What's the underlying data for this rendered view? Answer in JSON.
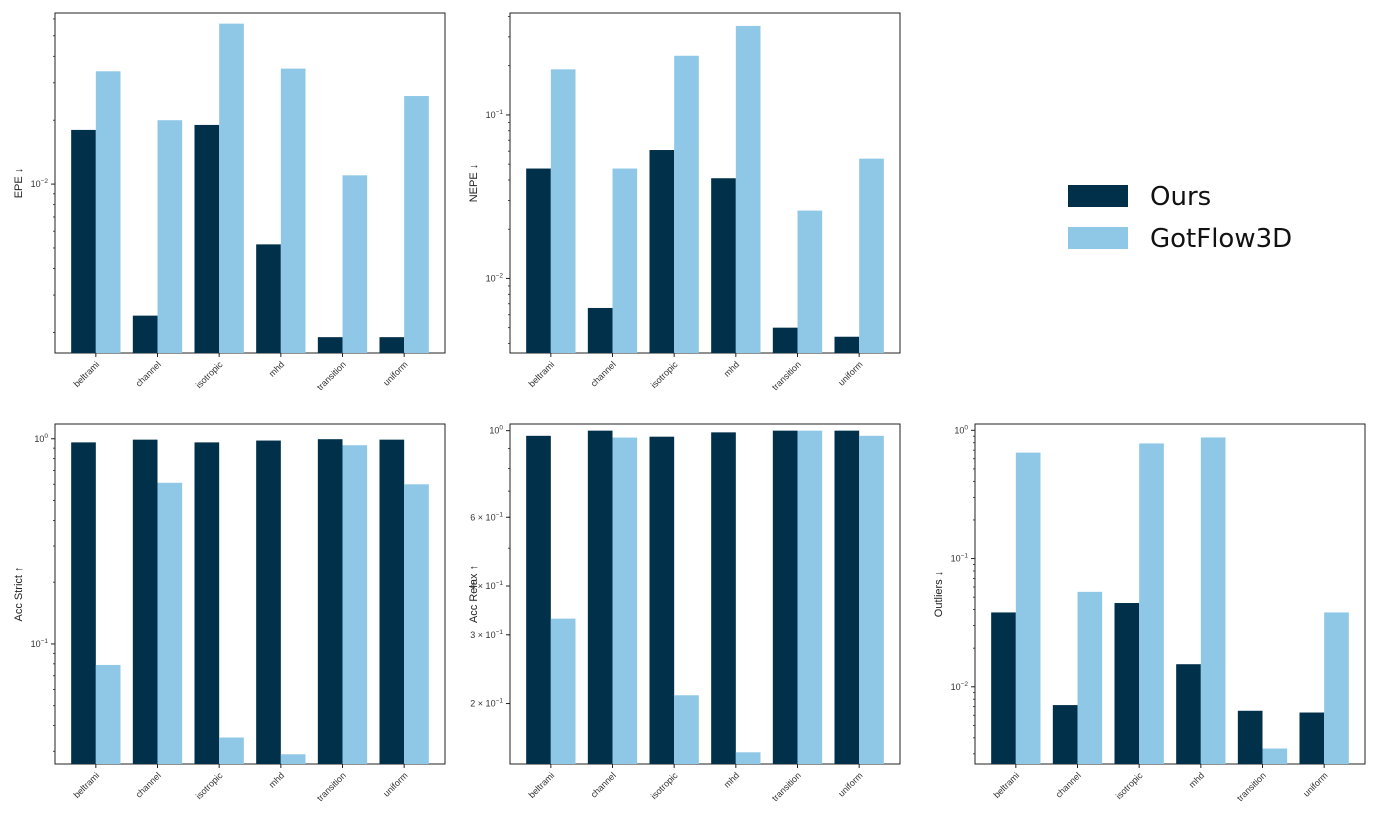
{
  "legend": {
    "entries": [
      {
        "label": "Ours",
        "color": "#01304a"
      },
      {
        "label": "GotFlow3D",
        "color": "#8fc8e7"
      }
    ]
  },
  "chart_data": [
    {
      "type": "bar",
      "ylabel": "EPE ↓",
      "yscale": "log",
      "ylim": [
        0.0016,
        0.064
      ],
      "categories": [
        "beltrami",
        "channel",
        "isotropic",
        "mhd",
        "transition",
        "uniform"
      ],
      "yticks": [
        {
          "value": 0.01,
          "base": "10",
          "exp": "−2"
        }
      ],
      "series": [
        {
          "name": "Ours",
          "color": "#01304a",
          "values": [
            0.018,
            0.0024,
            0.019,
            0.0052,
            0.0019,
            0.0019
          ]
        },
        {
          "name": "GotFlow3D",
          "color": "#8fc8e7",
          "values": [
            0.034,
            0.02,
            0.057,
            0.035,
            0.011,
            0.026
          ]
        }
      ]
    },
    {
      "type": "bar",
      "ylabel": "NEPE ↓",
      "yscale": "log",
      "ylim": [
        0.0035,
        0.42
      ],
      "categories": [
        "beltrami",
        "channel",
        "isotropic",
        "mhd",
        "transition",
        "uniform"
      ],
      "yticks": [
        {
          "value": 0.1,
          "base": "10",
          "exp": "−1"
        },
        {
          "value": 0.01,
          "base": "10",
          "exp": "−2"
        }
      ],
      "series": [
        {
          "name": "Ours",
          "color": "#01304a",
          "values": [
            0.047,
            0.0066,
            0.061,
            0.041,
            0.005,
            0.0044
          ]
        },
        {
          "name": "GotFlow3D",
          "color": "#8fc8e7",
          "values": [
            0.19,
            0.047,
            0.23,
            0.35,
            0.026,
            0.054
          ]
        }
      ]
    },
    {
      "type": "bar",
      "ylabel": "Acc Strict ↑",
      "yscale": "log",
      "ylim": [
        0.026,
        1.18
      ],
      "categories": [
        "beltrami",
        "channel",
        "isotropic",
        "mhd",
        "transition",
        "uniform"
      ],
      "yticks": [
        {
          "value": 1,
          "base": "10",
          "exp": "0"
        },
        {
          "value": 0.1,
          "base": "10",
          "exp": "−1"
        }
      ],
      "series": [
        {
          "name": "Ours",
          "color": "#01304a",
          "values": [
            0.96,
            0.99,
            0.96,
            0.98,
            0.995,
            0.99
          ]
        },
        {
          "name": "GotFlow3D",
          "color": "#8fc8e7",
          "values": [
            0.079,
            0.61,
            0.035,
            0.029,
            0.93,
            0.6
          ]
        }
      ]
    },
    {
      "type": "bar",
      "ylabel": "Acc Relax ↑",
      "yscale": "log",
      "ylim": [
        0.14,
        1.04
      ],
      "categories": [
        "beltrami",
        "channel",
        "isotropic",
        "mhd",
        "transition",
        "uniform"
      ],
      "yticks": [
        {
          "value": 1,
          "base": "10",
          "exp": "0"
        },
        {
          "value": 0.6,
          "base": "6 × 10",
          "exp": "−1"
        },
        {
          "value": 0.4,
          "base": "4 × 10",
          "exp": "−1"
        },
        {
          "value": 0.3,
          "base": "3 × 10",
          "exp": "−1"
        },
        {
          "value": 0.2,
          "base": "2 × 10",
          "exp": "−1"
        }
      ],
      "series": [
        {
          "name": "Ours",
          "color": "#01304a",
          "values": [
            0.97,
            1.0,
            0.965,
            0.99,
            1.0,
            1.0
          ]
        },
        {
          "name": "GotFlow3D",
          "color": "#8fc8e7",
          "values": [
            0.33,
            0.96,
            0.21,
            0.15,
            1.0,
            0.97
          ]
        }
      ]
    },
    {
      "type": "bar",
      "ylabel": "Outliers ↓",
      "yscale": "log",
      "ylim": [
        0.0025,
        1.12
      ],
      "categories": [
        "beltrami",
        "channel",
        "isotropic",
        "mhd",
        "transition",
        "uniform"
      ],
      "yticks": [
        {
          "value": 1,
          "base": "10",
          "exp": "0"
        },
        {
          "value": 0.1,
          "base": "10",
          "exp": "−1"
        },
        {
          "value": 0.01,
          "base": "10",
          "exp": "−2"
        }
      ],
      "series": [
        {
          "name": "Ours",
          "color": "#01304a",
          "values": [
            0.038,
            0.0072,
            0.045,
            0.015,
            0.0065,
            0.0063
          ]
        },
        {
          "name": "GotFlow3D",
          "color": "#8fc8e7",
          "values": [
            0.67,
            0.055,
            0.79,
            0.88,
            0.0033,
            0.038
          ]
        }
      ]
    }
  ]
}
